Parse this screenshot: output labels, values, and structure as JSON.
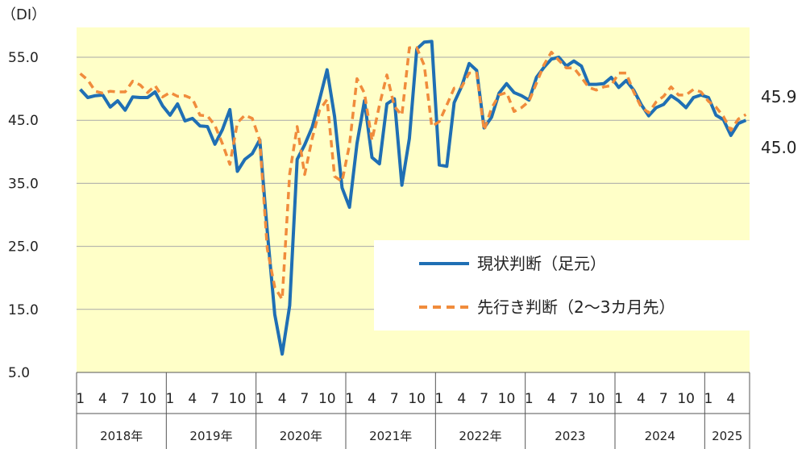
{
  "chart_data": {
    "type": "line",
    "ylabel": "（DI）",
    "ylim": [
      5.0,
      57.0
    ],
    "yticks": [
      "5.0",
      "15.0",
      "25.0",
      "35.0",
      "45.0",
      "55.0"
    ],
    "month_ticks": [
      "1",
      "4",
      "7",
      "10"
    ],
    "years": [
      "2018年",
      "2019年",
      "2020年",
      "2021年",
      "2022年",
      "2023",
      "2024",
      "2025"
    ],
    "start": "2018-01",
    "grid": true,
    "background_color": "#FFFFC8",
    "legend_position": "center-right",
    "series": [
      {
        "name": "現状判断（足元）",
        "color": "#1F6FB4",
        "style": "solid",
        "values": [
          49.9,
          48.6,
          48.9,
          49.0,
          47.1,
          48.1,
          46.6,
          48.7,
          48.6,
          48.6,
          49.5,
          47.3,
          45.8,
          47.6,
          44.9,
          45.3,
          44.1,
          44.0,
          41.2,
          43.5,
          46.7,
          36.9,
          38.8,
          39.7,
          41.9,
          27.4,
          14.2,
          7.9,
          15.6,
          38.8,
          41.1,
          43.9,
          48.3,
          53.0,
          45.6,
          34.3,
          31.2,
          41.3,
          48.1,
          39.1,
          38.1,
          47.6,
          48.4,
          34.7,
          42.1,
          56.3,
          57.4,
          57.5,
          37.9,
          37.7,
          47.8,
          50.4,
          54.0,
          52.9,
          43.8,
          45.5,
          49.3,
          50.8,
          49.4,
          48.9,
          48.2,
          51.8,
          53.4,
          54.7,
          55.0,
          53.6,
          54.4,
          53.6,
          50.7,
          50.7,
          50.8,
          51.8,
          50.2,
          51.3,
          49.8,
          47.5,
          45.7,
          47.0,
          47.5,
          48.9,
          48.1,
          47.0,
          48.6,
          49.0,
          48.6,
          45.8,
          45.1,
          42.6,
          44.5,
          45.0
        ],
        "end_label": "45.0"
      },
      {
        "name": "先行き判断（2～3カ月先）",
        "color": "#F08C3C",
        "style": "dashed",
        "values": [
          52.4,
          51.4,
          49.6,
          49.3,
          49.6,
          49.5,
          49.5,
          51.2,
          50.6,
          49.4,
          50.5,
          48.7,
          49.4,
          48.8,
          48.9,
          48.4,
          45.8,
          45.7,
          44.2,
          41.3,
          38.0,
          44.6,
          45.8,
          45.3,
          41.8,
          24.6,
          18.5,
          16.6,
          36.5,
          44.0,
          36.4,
          42.1,
          46.6,
          48.3,
          36.1,
          35.3,
          41.1,
          51.6,
          49.3,
          41.8,
          47.4,
          52.2,
          47.2,
          45.8,
          56.5,
          56.5,
          53.7,
          44.0,
          44.8,
          47.4,
          50.1,
          50.3,
          52.5,
          52.5,
          43.4,
          46.9,
          49.0,
          49.4,
          46.4,
          47.0,
          48.0,
          50.9,
          53.8,
          55.8,
          54.5,
          53.3,
          53.3,
          51.8,
          50.2,
          49.8,
          50.3,
          50.5,
          52.5,
          52.5,
          49.5,
          47.1,
          46.2,
          47.9,
          48.8,
          50.3,
          49.0,
          49.0,
          49.9,
          49.5,
          48.0,
          47.1,
          45.6,
          43.4,
          45.2,
          45.9
        ],
        "end_label": "45.9"
      }
    ]
  }
}
